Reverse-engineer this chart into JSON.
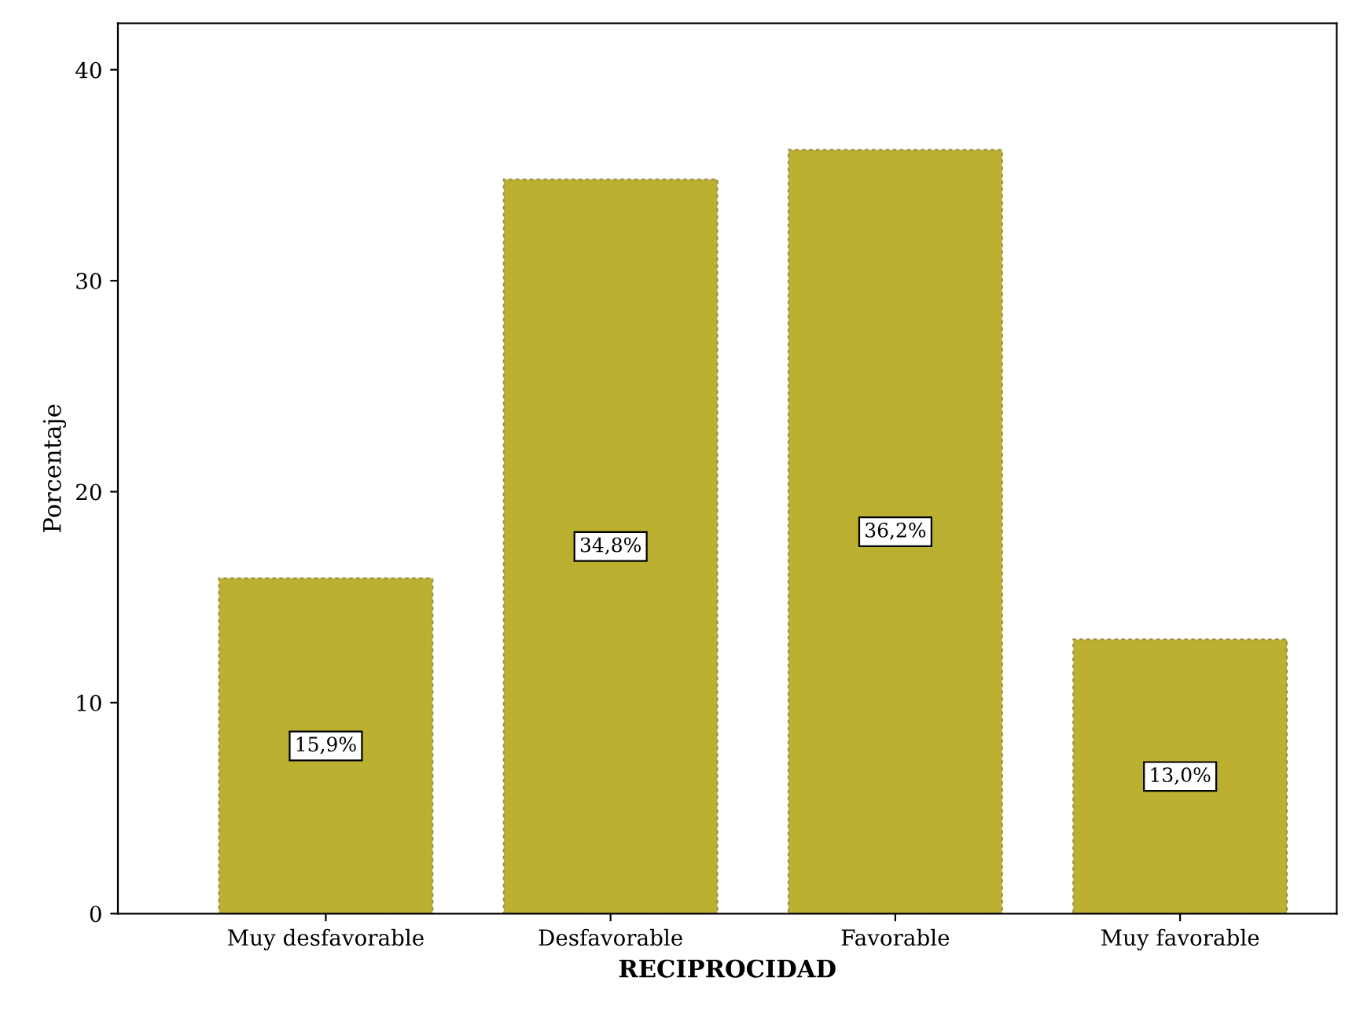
{
  "chart_data": {
    "type": "bar",
    "xlabel": "RECIPROCIDAD",
    "ylabel": "Porcentaje",
    "categories": [
      "Muy desfavorable",
      "Desfavorable",
      "Favorable",
      "Muy favorable"
    ],
    "values": [
      15.9,
      34.8,
      36.2,
      13.0
    ],
    "value_labels": [
      "15,9%",
      "34,8%",
      "36,2%",
      "13,0%"
    ],
    "color": "#bcb030",
    "ylim": [
      0,
      42.2
    ],
    "yticks": [
      0,
      10,
      20,
      30,
      40
    ],
    "grid": false
  }
}
